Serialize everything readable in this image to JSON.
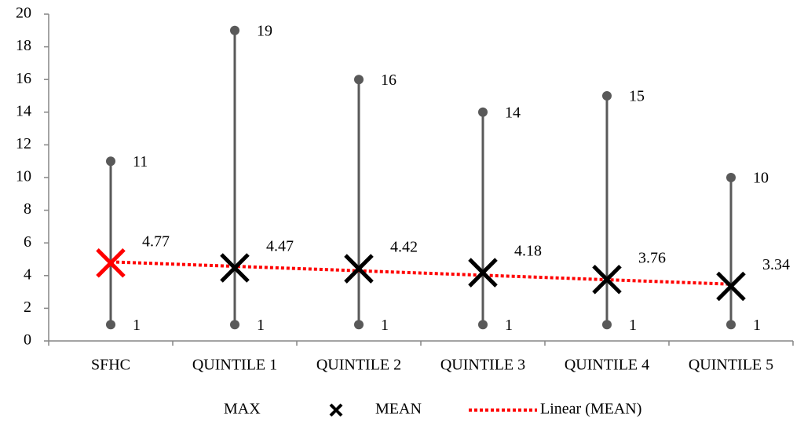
{
  "chart_data": {
    "type": "high-low",
    "categories": [
      "SFHC",
      "QUINTILE 1",
      "QUINTILE 2",
      "QUINTILE 3",
      "QUINTILE 4",
      "QUINTILE 5"
    ],
    "series": [
      {
        "name": "MAX",
        "color": "#595959",
        "values": [
          11,
          19,
          16,
          14,
          15,
          10
        ]
      },
      {
        "name": "MEAN",
        "color": "#000000",
        "point_colors": [
          "#ff0000",
          null,
          null,
          null,
          null,
          null
        ],
        "values": [
          4.77,
          4.47,
          4.42,
          4.18,
          3.76,
          3.34
        ]
      }
    ],
    "low_values": [
      1,
      1,
      1,
      1,
      1,
      1
    ],
    "trendline": {
      "name": "Linear (MEAN)",
      "color": "#ff0000"
    },
    "ylim": [
      0,
      20
    ],
    "yticks": [
      0,
      2,
      4,
      6,
      8,
      10,
      12,
      14,
      16,
      18,
      20
    ],
    "legend": "bottom"
  }
}
